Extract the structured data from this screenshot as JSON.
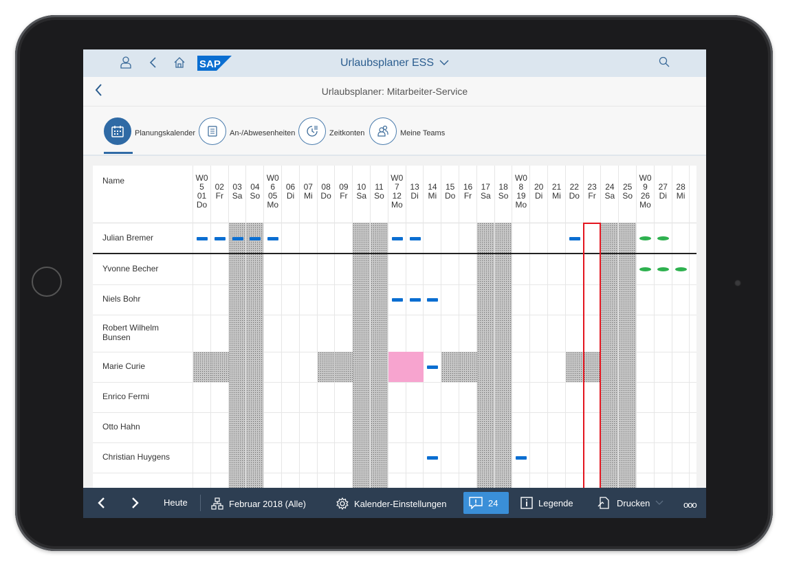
{
  "shell": {
    "title": "Urlaubsplaner ESS",
    "logo_text": "SAP",
    "brand_color": "#0a6ed1"
  },
  "subheader": {
    "title": "Urlaubsplaner: Mitarbeiter-Service"
  },
  "tabs": [
    {
      "label": "Planungskalender",
      "icon": "calendar-icon",
      "active": true
    },
    {
      "label": "An-/Abwesenheiten",
      "icon": "list-icon",
      "active": false
    },
    {
      "label": "Zeitkonten",
      "icon": "time-account-icon",
      "active": false
    },
    {
      "label": "Meine Teams",
      "icon": "team-icon",
      "active": false
    }
  ],
  "calendar": {
    "name_header": "Name",
    "days": [
      {
        "w": "W0",
        "n": "5",
        "d": "01",
        "wd": "Do"
      },
      {
        "w": "",
        "n": "",
        "d": "02",
        "wd": "Fr"
      },
      {
        "w": "",
        "n": "",
        "d": "03",
        "wd": "Sa"
      },
      {
        "w": "",
        "n": "",
        "d": "04",
        "wd": "So"
      },
      {
        "w": "W0",
        "n": "6",
        "d": "05",
        "wd": "Mo"
      },
      {
        "w": "",
        "n": "",
        "d": "06",
        "wd": "Di"
      },
      {
        "w": "",
        "n": "",
        "d": "07",
        "wd": "Mi"
      },
      {
        "w": "",
        "n": "",
        "d": "08",
        "wd": "Do"
      },
      {
        "w": "",
        "n": "",
        "d": "09",
        "wd": "Fr"
      },
      {
        "w": "",
        "n": "",
        "d": "10",
        "wd": "Sa"
      },
      {
        "w": "",
        "n": "",
        "d": "11",
        "wd": "So"
      },
      {
        "w": "W0",
        "n": "7",
        "d": "12",
        "wd": "Mo"
      },
      {
        "w": "",
        "n": "",
        "d": "13",
        "wd": "Di"
      },
      {
        "w": "",
        "n": "",
        "d": "14",
        "wd": "Mi"
      },
      {
        "w": "",
        "n": "",
        "d": "15",
        "wd": "Do"
      },
      {
        "w": "",
        "n": "",
        "d": "16",
        "wd": "Fr"
      },
      {
        "w": "",
        "n": "",
        "d": "17",
        "wd": "Sa"
      },
      {
        "w": "",
        "n": "",
        "d": "18",
        "wd": "So"
      },
      {
        "w": "W0",
        "n": "8",
        "d": "19",
        "wd": "Mo"
      },
      {
        "w": "",
        "n": "",
        "d": "20",
        "wd": "Di"
      },
      {
        "w": "",
        "n": "",
        "d": "21",
        "wd": "Mi"
      },
      {
        "w": "",
        "n": "",
        "d": "22",
        "wd": "Do"
      },
      {
        "w": "",
        "n": "",
        "d": "23",
        "wd": "Fr"
      },
      {
        "w": "",
        "n": "",
        "d": "24",
        "wd": "Sa"
      },
      {
        "w": "",
        "n": "",
        "d": "25",
        "wd": "So"
      },
      {
        "w": "W0",
        "n": "9",
        "d": "26",
        "wd": "Mo"
      },
      {
        "w": "",
        "n": "",
        "d": "27",
        "wd": "Di"
      },
      {
        "w": "",
        "n": "",
        "d": "28",
        "wd": "Mi"
      }
    ],
    "weekend_days": [
      2,
      3,
      9,
      10,
      16,
      17,
      23,
      24
    ],
    "today_index": 22,
    "employees": [
      {
        "name": "Julian Bremer",
        "blue": [
          0,
          1,
          2,
          3,
          4,
          11,
          12,
          21
        ],
        "green": [
          25,
          26
        ],
        "shade": [],
        "pink": []
      },
      {
        "name": "Yvonne Becher",
        "blue": [],
        "green": [
          25,
          26,
          27
        ],
        "shade": [],
        "pink": []
      },
      {
        "name": "Niels Bohr",
        "blue": [
          11,
          12,
          13
        ],
        "green": [],
        "shade": [],
        "pink": []
      },
      {
        "name": "Robert Wilhelm Bunsen",
        "blue": [],
        "green": [],
        "shade": [],
        "pink": []
      },
      {
        "name": "Marie Curie",
        "blue": [
          13
        ],
        "green": [],
        "shade": [
          0,
          1,
          7,
          8,
          14,
          15,
          21,
          22
        ],
        "pink": [
          11,
          12
        ]
      },
      {
        "name": "Enrico Fermi",
        "blue": [],
        "green": [],
        "shade": [],
        "pink": []
      },
      {
        "name": "Otto Hahn",
        "blue": [],
        "green": [],
        "shade": [],
        "pink": []
      },
      {
        "name": "Christian Huygens",
        "blue": [
          13,
          18
        ],
        "green": [],
        "shade": [],
        "pink": []
      }
    ],
    "absence_colors": {
      "blue": "#0a6ed1",
      "green": "#2eb14f",
      "pink": "#f7a4cf",
      "today": "#e3141e"
    }
  },
  "footer": {
    "today_label": "Heute",
    "period_label": "Februar 2018 (Alle)",
    "settings_label": "Kalender-Einstellungen",
    "messages_count": "24",
    "legend_label": "Legende",
    "print_label": "Drucken",
    "more_label": "ooo"
  }
}
